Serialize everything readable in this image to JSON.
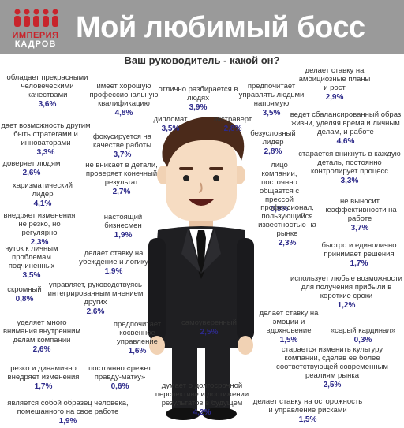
{
  "logo": {
    "line1": "ИМПЕРИЯ",
    "line2": "КАДРОВ"
  },
  "title": "Мой любимый босс",
  "subtitle": "Ваш руководитель - какой он?",
  "items": [
    {
      "label": "обладает прекрасными человеческими качествами",
      "pct": "3,6%"
    },
    {
      "label": "имеет хорошую профессиональную квалификацию",
      "pct": "4,8%"
    },
    {
      "label": "отлично разбирается в людях",
      "pct": "3,9%"
    },
    {
      "label": "предпочитает управлять людьми напрямую",
      "pct": "3,5%"
    },
    {
      "label": "делает ставку на амбициозные планы и рост",
      "pct": "2,9%"
    },
    {
      "label": "дипломат",
      "pct": "3,5%"
    },
    {
      "label": "экстраверт",
      "pct": "2,8%"
    },
    {
      "label": "ведет сбалансированный образ жизни, уделяя время и личным делам, и работе",
      "pct": "4,6%"
    },
    {
      "label": "дает возможность другим быть стратегами и инноваторами",
      "pct": "3,3%"
    },
    {
      "label": "фокусируется на качестве работы",
      "pct": "3,7%"
    },
    {
      "label": "безусловный лидер",
      "pct": "2,8%"
    },
    {
      "label": "доверяет людям",
      "pct": "2,6%"
    },
    {
      "label": "не вникает в детали, проверяет конечный результат",
      "pct": "2,7%"
    },
    {
      "label": "старается вникнуть в каждую деталь, постоянно контролирует процесс",
      "pct": "3,3%"
    },
    {
      "label": "харизматический лидер",
      "pct": "4,1%"
    },
    {
      "label": "лицо компании, постоянно общается с прессой",
      "pct": "0,9%"
    },
    {
      "label": "не выносит неэффективности на работе",
      "pct": "3,7%"
    },
    {
      "label": "внедряет изменения не резко, но регулярно",
      "pct": "2,3%"
    },
    {
      "label": "настоящий бизнесмен",
      "pct": "1,9%"
    },
    {
      "label": "профессионал, пользующийся известностью на рынке",
      "pct": "2,3%"
    },
    {
      "label": "чуток к личным проблемам подчиненных",
      "pct": "3,5%"
    },
    {
      "label": "делает ставку на убеждение и логику",
      "pct": "1,9%"
    },
    {
      "label": "быстро и единолично принимает решения",
      "pct": "1,7%"
    },
    {
      "label": "скромный",
      "pct": "0,8%"
    },
    {
      "label": "управляет, руководствуясь интегрированным мнением других",
      "pct": "2,6%"
    },
    {
      "label": "использует любые возможности для получения прибыли в короткие сроки",
      "pct": "1,2%"
    },
    {
      "label": "уделяет много внимания внутренним делам компании",
      "pct": "2,6%"
    },
    {
      "label": "предпочитает косвенное управление",
      "pct": "1,6%"
    },
    {
      "label": "самоуверенный",
      "pct": "2,5%"
    },
    {
      "label": "делает ставку на эмоции и вдохновение",
      "pct": "1,5%"
    },
    {
      "label": "«серый кардинал»",
      "pct": "0,3%"
    },
    {
      "label": "резко и динамично внедряет изменения",
      "pct": "1,7%"
    },
    {
      "label": "постоянно «режет правду-матку»",
      "pct": "0,6%"
    },
    {
      "label": "старается изменить культуру компании, сделав ее более соответствующей современным реалиям рынка",
      "pct": "2,5%"
    },
    {
      "label": "думает о долгосрочной перспективе и достижении результатов в будущем",
      "pct": "4,2%"
    },
    {
      "label": "является собой образец человека, помешанного на свое работе",
      "pct": "1,9%"
    },
    {
      "label": "делает ставку на осторожность и управление рисками",
      "pct": "1,5%"
    }
  ],
  "colors": {
    "header": "#9a9a9a",
    "logo_red": "#c8242b",
    "pct_blue": "#2d2a8a"
  }
}
